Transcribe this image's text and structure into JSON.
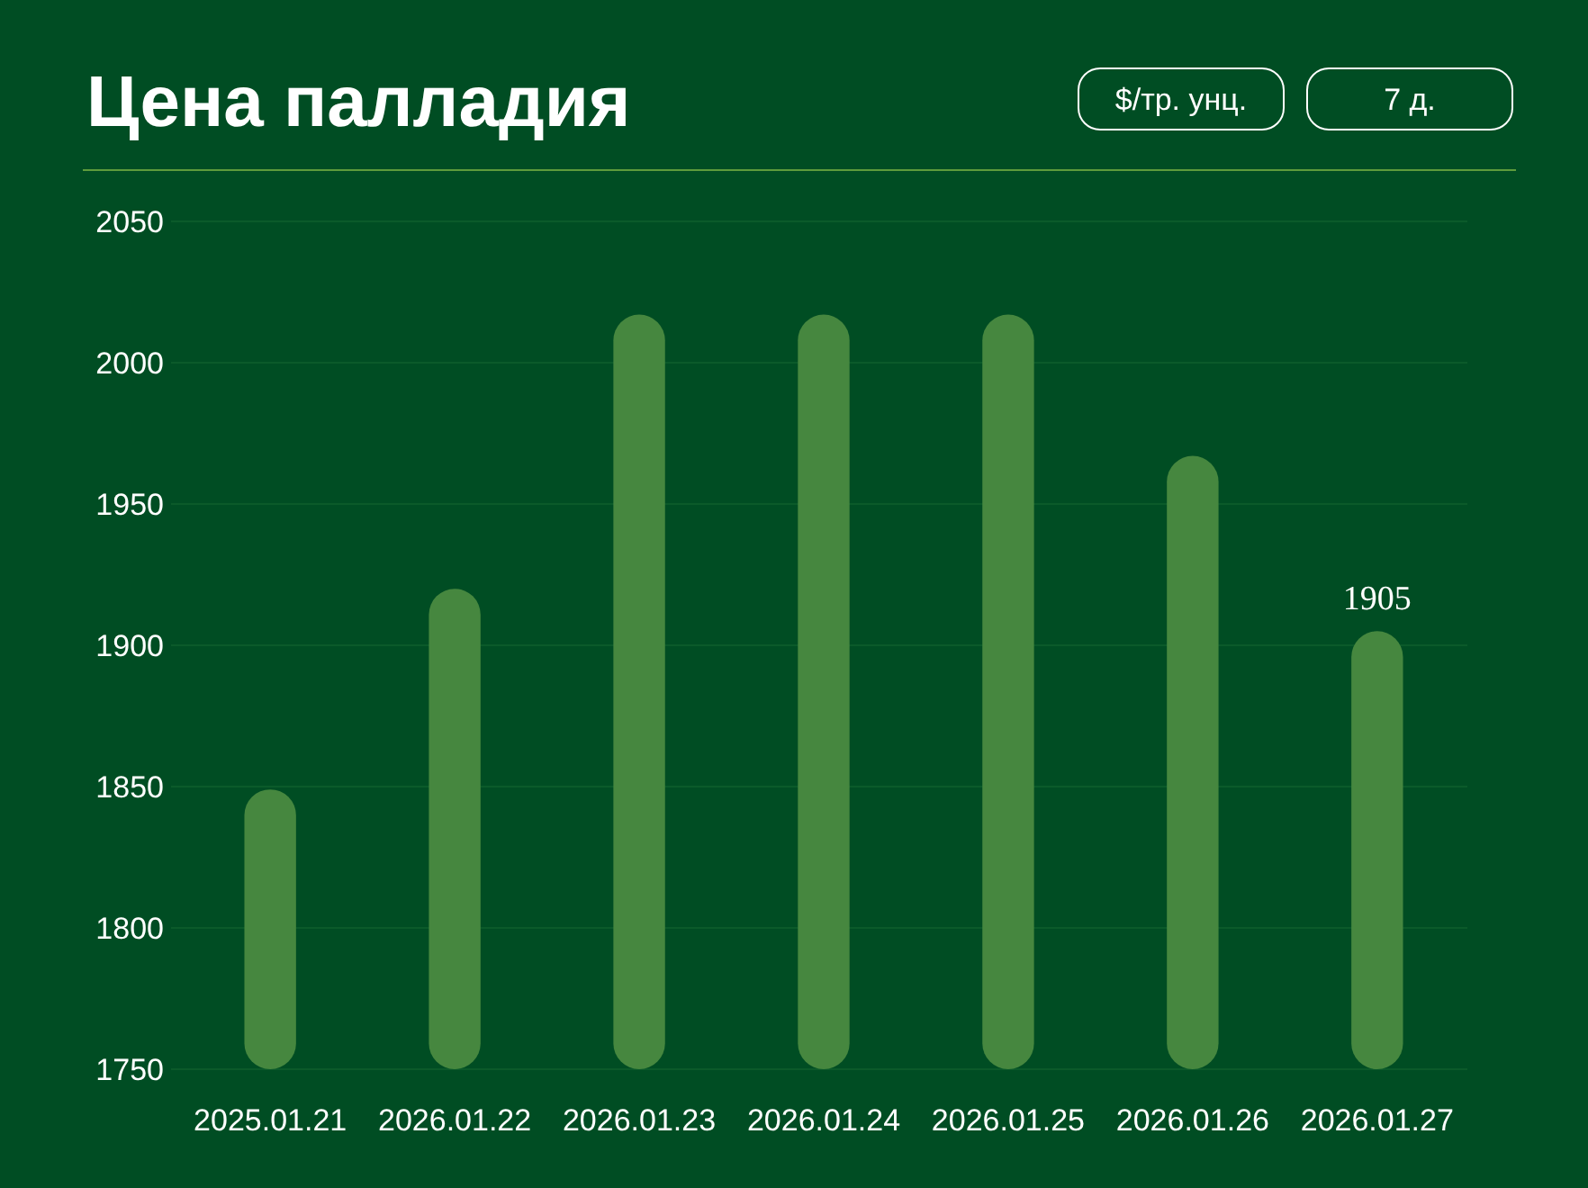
{
  "chart_data": {
    "type": "bar",
    "title": "Цена палладия",
    "categories": [
      "2025.01.21",
      "2026.01.22",
      "2026.01.23",
      "2026.01.24",
      "2026.01.25",
      "2026.01.26",
      "2026.01.27"
    ],
    "values": [
      1849,
      1920,
      2017,
      2017,
      2017,
      1967,
      1905
    ],
    "value_labels": [
      null,
      null,
      null,
      null,
      null,
      null,
      "1905"
    ],
    "color": "#46873f",
    "ylim": [
      1750,
      2050
    ],
    "yticks": [
      1750,
      1800,
      1850,
      1900,
      1950,
      2000,
      2050
    ],
    "grid": "y",
    "annotations": [
      "$/тр. унц.",
      "7 д."
    ]
  }
}
